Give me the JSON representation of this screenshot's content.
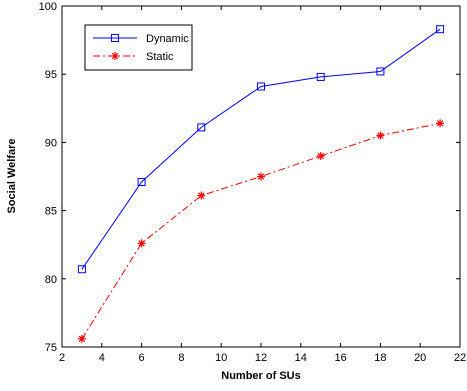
{
  "chart_data": {
    "type": "line",
    "title": "",
    "xlabel": "Number of SUs",
    "ylabel": "Social Welfare",
    "xlim": [
      2,
      22
    ],
    "ylim": [
      75,
      100
    ],
    "x_ticks": [
      2,
      4,
      6,
      8,
      10,
      12,
      14,
      16,
      18,
      20,
      22
    ],
    "y_ticks": [
      75,
      80,
      85,
      90,
      95,
      100
    ],
    "grid": false,
    "legend_position": "top-left",
    "x": [
      3,
      6,
      9,
      12,
      15,
      18,
      21
    ],
    "series": [
      {
        "name": "Dynamic",
        "values": [
          80.7,
          87.1,
          91.1,
          94.1,
          94.8,
          95.2,
          98.3
        ],
        "color": "#0000ff",
        "line_style": "solid",
        "marker": "square"
      },
      {
        "name": "Static",
        "values": [
          75.6,
          82.6,
          86.1,
          87.5,
          89.0,
          90.5,
          91.4
        ],
        "color": "#ff0000",
        "line_style": "dash-dot",
        "marker": "asterisk"
      }
    ]
  }
}
